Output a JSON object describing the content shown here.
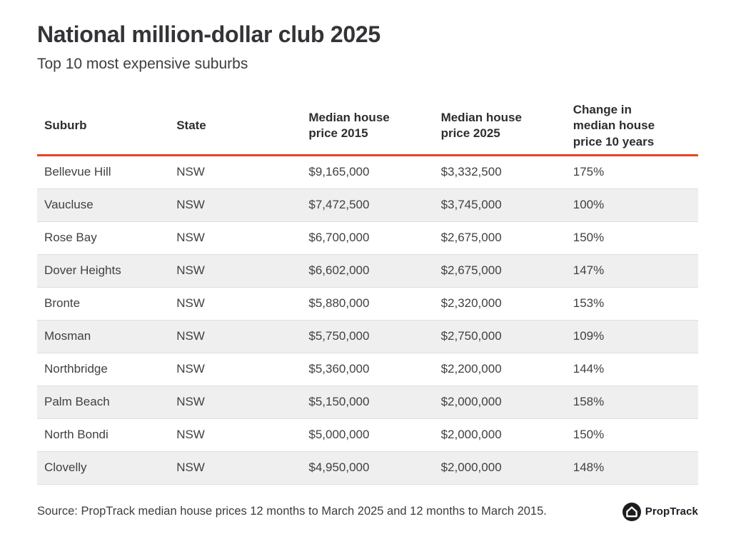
{
  "header": {
    "title": "National million-dollar club 2025",
    "subtitle": "Top 10 most expensive suburbs"
  },
  "chart_data": {
    "type": "table",
    "title": "National million-dollar club 2025",
    "subtitle": "Top 10 most expensive suburbs",
    "columns": [
      "Suburb",
      "State",
      "Median house price 2015",
      "Median house price 2025",
      "Change in median house price 10 years"
    ],
    "rows": [
      [
        "Bellevue Hill",
        "NSW",
        "$9,165,000",
        "$3,332,500",
        "175%"
      ],
      [
        "Vaucluse",
        "NSW",
        "$7,472,500",
        "$3,745,000",
        "100%"
      ],
      [
        "Rose Bay",
        "NSW",
        "$6,700,000",
        "$2,675,000",
        "150%"
      ],
      [
        "Dover Heights",
        "NSW",
        "$6,602,000",
        "$2,675,000",
        "147%"
      ],
      [
        "Bronte",
        "NSW",
        "$5,880,000",
        "$2,320,000",
        "153%"
      ],
      [
        "Mosman",
        "NSW",
        "$5,750,000",
        "$2,750,000",
        "109%"
      ],
      [
        "Northbridge",
        "NSW",
        "$5,360,000",
        "$2,200,000",
        "144%"
      ],
      [
        "Palm Beach",
        "NSW",
        "$5,150,000",
        "$2,000,000",
        "158%"
      ],
      [
        "North Bondi",
        "NSW",
        "$5,000,000",
        "$2,000,000",
        "150%"
      ],
      [
        "Clovelly",
        "NSW",
        "$4,950,000",
        "$2,000,000",
        "148%"
      ]
    ],
    "layout": {
      "striped_rows": "even",
      "header_rule_color": "#e8432b"
    }
  },
  "footer": {
    "source": "Source: PropTrack median house prices 12 months to March 2025 and 12 months to March 2015.",
    "brand": "PropTrack"
  },
  "colors": {
    "accent_red": "#e8432b",
    "stripe_gray": "#efeff0",
    "row_border": "#dedede",
    "title_text": "#343438",
    "body_text": "#414143",
    "logo_black": "#1d1d20"
  }
}
